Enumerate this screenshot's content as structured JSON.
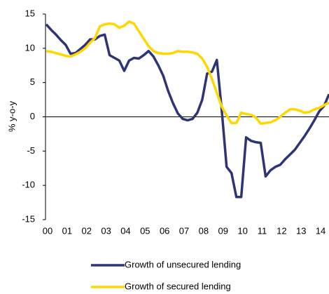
{
  "chart_data": {
    "type": "line",
    "y_label": "% y-o-y",
    "x": [
      2000,
      2000.25,
      2000.5,
      2000.75,
      2001,
      2001.25,
      2001.5,
      2001.75,
      2002,
      2002.25,
      2002.5,
      2002.75,
      2003,
      2003.25,
      2003.5,
      2003.75,
      2004,
      2004.25,
      2004.5,
      2004.75,
      2005,
      2005.25,
      2005.5,
      2005.75,
      2006,
      2006.25,
      2006.5,
      2006.75,
      2007,
      2007.25,
      2007.5,
      2007.75,
      2008,
      2008.25,
      2008.5,
      2008.75,
      2009,
      2009.25,
      2009.5,
      2009.75,
      2010,
      2010.25,
      2010.5,
      2010.75,
      2011,
      2011.25,
      2011.5,
      2011.75,
      2012,
      2012.25,
      2012.5,
      2012.75,
      2013,
      2013.25,
      2013.5,
      2013.75,
      2014,
      2014.25,
      2014.5
    ],
    "series": [
      {
        "name": "Growth of unsecured lending",
        "color": "#2e3475",
        "values": [
          13.5,
          12.7,
          12.0,
          11.2,
          10.5,
          9.2,
          9.3,
          9.9,
          10.5,
          11.3,
          11.3,
          11.8,
          12.0,
          9.0,
          8.6,
          8.2,
          6.7,
          8.2,
          8.6,
          8.5,
          9.0,
          9.6,
          8.8,
          7.5,
          6.0,
          3.8,
          2.0,
          0.5,
          -0.3,
          -0.5,
          -0.3,
          0.6,
          2.5,
          6.3,
          6.6,
          8.3,
          1.0,
          -7.3,
          -8.2,
          -11.7,
          -11.7,
          -3.0,
          -3.5,
          -3.7,
          -3.8,
          -8.7,
          -7.8,
          -7.3,
          -7.0,
          -6.2,
          -5.5,
          -4.8,
          -3.8,
          -2.8,
          -1.7,
          -0.5,
          0.8,
          1.6,
          3.3
        ]
      },
      {
        "name": "Growth of secured lending",
        "color": "#ffd700",
        "values": [
          9.6,
          9.5,
          9.3,
          9.1,
          8.9,
          8.8,
          9.1,
          9.5,
          10.0,
          10.8,
          11.5,
          13.2,
          13.5,
          13.6,
          13.5,
          13.0,
          13.3,
          13.9,
          13.6,
          12.5,
          11.4,
          10.3,
          9.6,
          9.3,
          9.2,
          9.2,
          9.3,
          9.6,
          9.5,
          9.5,
          9.4,
          9.2,
          8.5,
          7.3,
          5.5,
          3.5,
          1.5,
          0.2,
          -0.9,
          -0.9,
          0.6,
          0.4,
          0.3,
          -0.1,
          -1.0,
          -0.9,
          -0.8,
          -0.5,
          0.0,
          0.6,
          1.1,
          1.1,
          0.9,
          0.6,
          0.7,
          1.1,
          1.3,
          1.7,
          2.1
        ]
      }
    ],
    "xlim": [
      2000,
      2014.5
    ],
    "xticks": [
      {
        "value": 2000,
        "label": "00"
      },
      {
        "value": 2001,
        "label": "01"
      },
      {
        "value": 2002,
        "label": "02"
      },
      {
        "value": 2003,
        "label": "03"
      },
      {
        "value": 2004,
        "label": "04"
      },
      {
        "value": 2005,
        "label": "05"
      },
      {
        "value": 2006,
        "label": "06"
      },
      {
        "value": 2007,
        "label": "07"
      },
      {
        "value": 2008,
        "label": "08"
      },
      {
        "value": 2009,
        "label": "09"
      },
      {
        "value": 2010,
        "label": "10"
      },
      {
        "value": 2011,
        "label": "11"
      },
      {
        "value": 2012,
        "label": "12"
      },
      {
        "value": 2013,
        "label": "13"
      },
      {
        "value": 2014,
        "label": "14"
      }
    ],
    "ylim": [
      -15,
      15
    ],
    "yticks": [
      -15,
      -10,
      -5,
      0,
      5,
      10,
      15
    ],
    "grid": false
  }
}
